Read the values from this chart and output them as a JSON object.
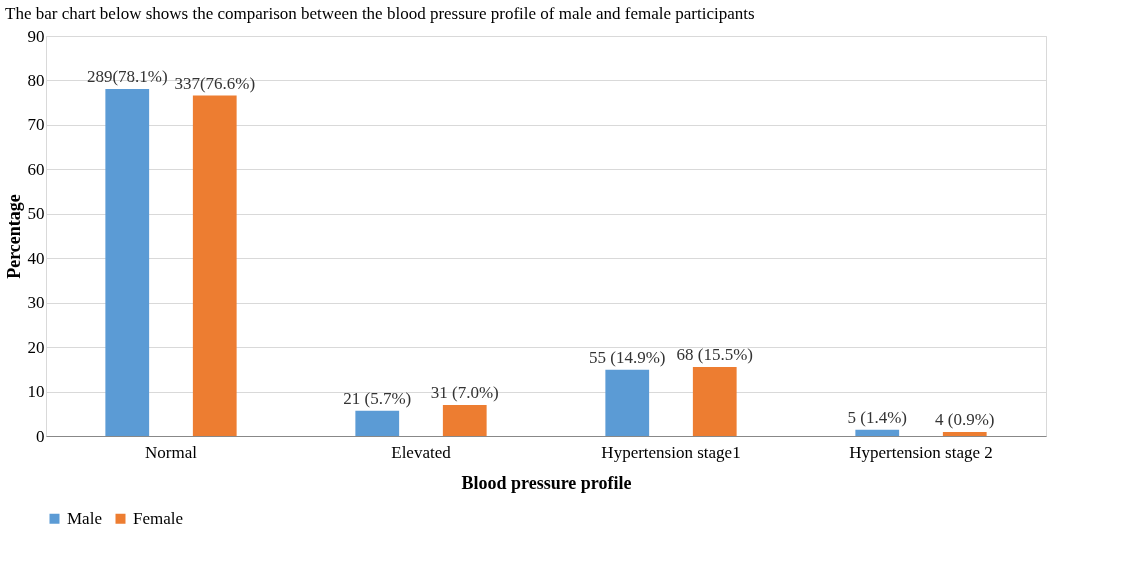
{
  "chart_data": {
    "type": "bar",
    "title": "The bar chart below shows the comparison between the blood pressure profile of male and female participants",
    "xlabel": "Blood pressure profile",
    "ylabel": "Percentage",
    "categories": [
      "Normal",
      "Elevated",
      "Hypertension stage1",
      "Hypertension stage 2"
    ],
    "series": [
      {
        "name": "Male",
        "color": "#5b9bd5",
        "values": [
          78.1,
          5.7,
          14.9,
          1.4
        ],
        "value_labels": [
          "289(78.1%)",
          "21 (5.7%)",
          "55 (14.9%)",
          "5 (1.4%)"
        ]
      },
      {
        "name": "Female",
        "color": "#ed7d31",
        "values": [
          76.6,
          7.0,
          15.5,
          0.9
        ],
        "value_labels": [
          "337(76.6%)",
          "31 (7.0%)",
          "68 (15.5%)",
          "4 (0.9%)"
        ]
      }
    ],
    "ylim": [
      0,
      90
    ],
    "yticks": [
      0,
      10,
      20,
      30,
      40,
      50,
      60,
      70,
      80,
      90
    ],
    "grid": "y",
    "legend": "bottom"
  }
}
